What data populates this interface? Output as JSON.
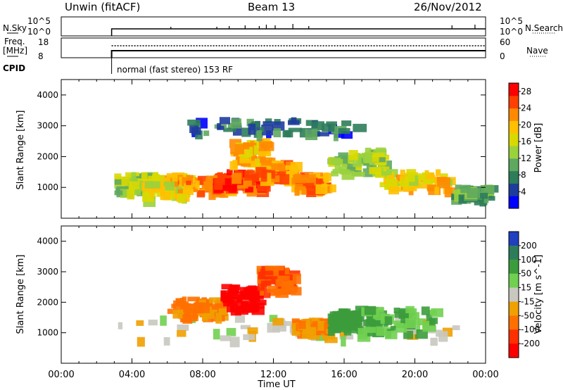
{
  "header": {
    "radar": "Unwin (fitACF)",
    "beam": "Beam 13",
    "date": "26/Nov/2012"
  },
  "top_panels": {
    "nsky_label": "N.Sky",
    "nsearch_label": "N.Search",
    "count_ticks": [
      "10^5",
      "10^0"
    ],
    "freq_label_1": "Freq.",
    "freq_label_2": "[MHz]",
    "freq_ticks": [
      "18",
      "8"
    ],
    "nave_label": "Nave",
    "nave_ticks": [
      "60",
      "0"
    ],
    "cpid_label": "CPID",
    "cpid_text": "normal (fast stereo) 153 RF"
  },
  "chart_data": [
    {
      "type": "heatmap",
      "title": "",
      "xlabel": "Time UT",
      "ylabel": "Slant Range [km]",
      "xlim_hours": [
        0,
        24
      ],
      "x_ticks": [
        "00:00",
        "04:00",
        "08:00",
        "12:00",
        "16:00",
        "20:00",
        "00:00"
      ],
      "ylim": [
        0,
        4500
      ],
      "y_ticks": [
        1000,
        2000,
        3000,
        4000
      ],
      "colorbar_label": "Power [dB]",
      "colorbar_ticks": [
        4,
        8,
        12,
        16,
        20,
        24,
        28
      ],
      "colorbar_range": [
        0,
        30
      ],
      "colorbar_colors": [
        "#0000ff",
        "#1e3c9c",
        "#2e7d5a",
        "#5fa85f",
        "#9ad23c",
        "#d9d900",
        "#ffc000",
        "#ff8a00",
        "#ff4000",
        "#ff0000"
      ],
      "data_start_hour": 2.85,
      "echo_regions": [
        {
          "t": [
            3.0,
            5.0
          ],
          "range": [
            900,
            1500
          ],
          "value": 14
        },
        {
          "t": [
            4.5,
            7.0
          ],
          "range": [
            700,
            1500
          ],
          "value": 18
        },
        {
          "t": [
            6.5,
            9.5
          ],
          "range": [
            900,
            1500
          ],
          "value": 22
        },
        {
          "t": [
            8.5,
            11.5
          ],
          "range": [
            1000,
            1600
          ],
          "value": 26
        },
        {
          "t": [
            9.5,
            11.5
          ],
          "range": [
            1800,
            2600
          ],
          "value": 20
        },
        {
          "t": [
            11.0,
            13.0
          ],
          "range": [
            1300,
            1900
          ],
          "value": 22
        },
        {
          "t": [
            13.0,
            15.0
          ],
          "range": [
            1000,
            1500
          ],
          "value": 22
        },
        {
          "t": [
            15.0,
            18.0
          ],
          "range": [
            1500,
            2300
          ],
          "value": 14
        },
        {
          "t": [
            18.0,
            22.0
          ],
          "range": [
            1000,
            1600
          ],
          "value": 18
        },
        {
          "t": [
            22.0,
            24.0
          ],
          "range": [
            700,
            1100
          ],
          "value": 10
        },
        {
          "t": [
            7.0,
            16.5
          ],
          "range": [
            2800,
            3300
          ],
          "value": 6
        }
      ]
    },
    {
      "type": "heatmap",
      "title": "",
      "xlabel": "Time UT",
      "ylabel": "Slant Range [km]",
      "xlim_hours": [
        0,
        24
      ],
      "x_ticks": [
        "00:00",
        "04:00",
        "08:00",
        "12:00",
        "16:00",
        "20:00",
        "00:00"
      ],
      "ylim": [
        0,
        4500
      ],
      "y_ticks": [
        1000,
        2000,
        3000,
        4000
      ],
      "colorbar_label": "Velocity [m s^-1]",
      "colorbar_ticks": [
        "200",
        "100",
        "50",
        "15",
        "-15",
        "-50",
        "-100",
        "-200"
      ],
      "colorbar_colors": [
        "#2040c0",
        "#2e7d5a",
        "#3c9c3c",
        "#70d050",
        "#c8c8c0",
        "#f0a000",
        "#ff7000",
        "#ff3000",
        "#ff0000"
      ],
      "echo_regions": [
        {
          "t": [
            3.0,
            22.5
          ],
          "range": [
            800,
            1600
          ],
          "value": 0
        },
        {
          "t": [
            6.0,
            9.0
          ],
          "range": [
            1600,
            2200
          ],
          "value": -50
        },
        {
          "t": [
            9.0,
            11.0
          ],
          "range": [
            1800,
            2600
          ],
          "value": -200
        },
        {
          "t": [
            11.0,
            13.0
          ],
          "range": [
            2400,
            3200
          ],
          "value": -100
        },
        {
          "t": [
            13.0,
            15.5
          ],
          "range": [
            1100,
            1500
          ],
          "value": -50
        },
        {
          "t": [
            15.0,
            16.5
          ],
          "range": [
            1200,
            1800
          ],
          "value": 50
        },
        {
          "t": [
            16.5,
            21.0
          ],
          "range": [
            1000,
            1900
          ],
          "value": 30
        }
      ]
    }
  ]
}
